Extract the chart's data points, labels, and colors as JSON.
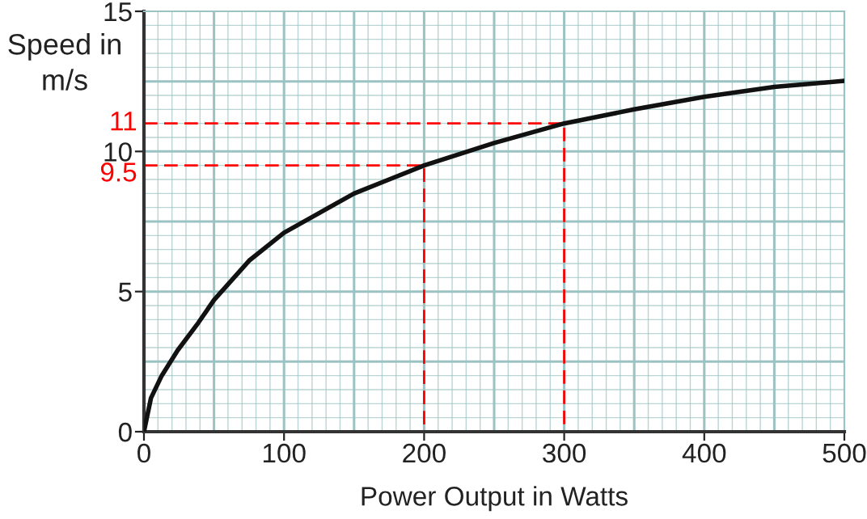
{
  "chart_data": {
    "type": "line",
    "xlabel": "Power Output in Watts",
    "ylabel": "Speed in\nm/s",
    "x": [
      0,
      5,
      12.7,
      24,
      39,
      50,
      75,
      100,
      125,
      150,
      175,
      200,
      250,
      300,
      350,
      400,
      450,
      500
    ],
    "series": [
      {
        "color": "#111111",
        "values": [
          0,
          1.2,
          2.0,
          2.9,
          3.9,
          4.7,
          6.1,
          7.1,
          7.8,
          8.5,
          9.0,
          9.5,
          10.3,
          11,
          11.5,
          11.95,
          12.3,
          12.52
        ]
      },
      {
        "color": "#ff0000",
        "line_style": "dashed",
        "x": [
          0,
          300,
          300
        ],
        "values": [
          11,
          11,
          0
        ]
      },
      {
        "color": "#ff0000",
        "line_style": "dashed",
        "x": [
          0,
          200,
          200
        ],
        "values": [
          9.5,
          9.5,
          0
        ]
      }
    ],
    "xlim": [
      0,
      500
    ],
    "ylim": [
      0,
      15
    ],
    "xticks": [
      0,
      100,
      200,
      300,
      400,
      500
    ],
    "yticks": [
      0,
      5,
      10,
      15
    ],
    "grid": true,
    "marker": "none",
    "line_style": "solid",
    "annotations": [
      "11",
      "9.5"
    ]
  }
}
